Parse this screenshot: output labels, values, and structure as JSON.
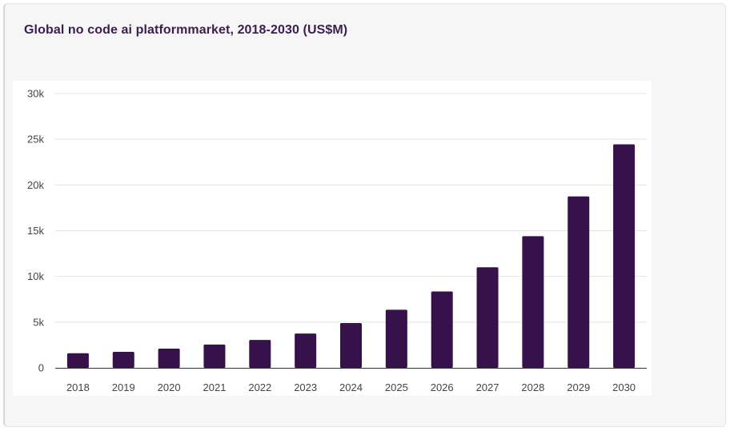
{
  "title": "Global no code ai platformmarket, 2018-2030 (US$M)",
  "colors": {
    "bar": "#37124a",
    "title": "#3b1d4f",
    "grid": "#e4e4e4",
    "axis": "#333333",
    "card_background": "#f6f6f7",
    "plot_background": "#ffffff"
  },
  "chart_data": {
    "type": "bar",
    "title": "Global no code ai platformmarket, 2018-2030 (US$M)",
    "xlabel": "",
    "ylabel": "",
    "categories": [
      "2018",
      "2019",
      "2020",
      "2021",
      "2022",
      "2023",
      "2024",
      "2025",
      "2026",
      "2027",
      "2028",
      "2029",
      "2030"
    ],
    "values": [
      1600,
      1750,
      2100,
      2550,
      3050,
      3750,
      4900,
      6350,
      8350,
      11000,
      14400,
      18750,
      24450
    ],
    "ylim": [
      0,
      30000
    ],
    "yticks": [
      0,
      5000,
      10000,
      15000,
      20000,
      25000,
      30000
    ],
    "ytick_labels": [
      "0",
      "5k",
      "10k",
      "15k",
      "20k",
      "25k",
      "30k"
    ],
    "grid": true,
    "legend": "none"
  }
}
